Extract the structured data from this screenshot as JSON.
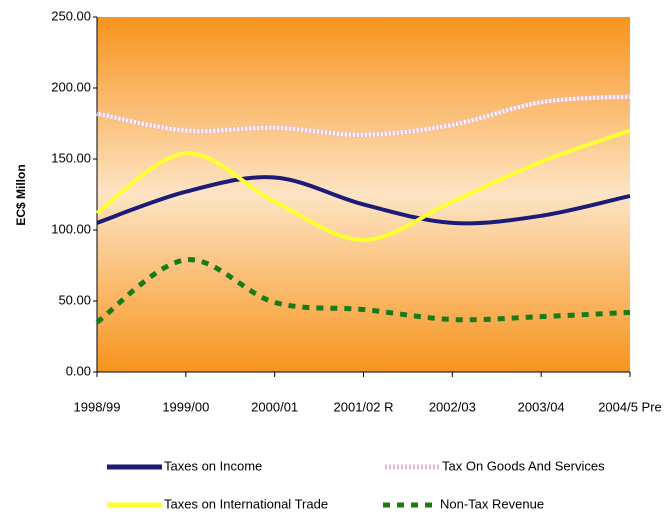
{
  "chart_data": {
    "type": "line",
    "y_label": "EC$ Millon",
    "categories": [
      "1998/99",
      "1999/00",
      "2000/01",
      "2001/02 R",
      "2002/03",
      "2003/04",
      "2004/5 Pre"
    ],
    "series": [
      {
        "name": "Taxes on Income",
        "color": "#1c1c78",
        "dash": "solid",
        "values": [
          105,
          127,
          137,
          118,
          105,
          110,
          124
        ]
      },
      {
        "name": "Tax On Goods And Services",
        "color": "#f2b6c0",
        "dash": "dotted",
        "values": [
          182,
          170,
          172,
          167,
          174,
          190,
          194
        ]
      },
      {
        "name": "Taxes on International Trade",
        "color": "#ffff33",
        "dash": "solid",
        "values": [
          112,
          154,
          120,
          93,
          120,
          148,
          170
        ]
      },
      {
        "name": "Non-Tax Revenue",
        "color": "#1a7a1a",
        "dash": "dashed",
        "values": [
          35,
          79,
          49,
          44,
          37,
          39,
          42
        ]
      }
    ],
    "ylim": [
      0,
      250
    ],
    "yticks": [
      {
        "value": 0,
        "label": "0.00"
      },
      {
        "value": 50,
        "label": "50.00"
      },
      {
        "value": 100,
        "label": "100.00"
      },
      {
        "value": 150,
        "label": "150.00"
      },
      {
        "value": 200,
        "label": "200.00"
      },
      {
        "value": 250,
        "label": "250.00"
      }
    ],
    "smooth": true
  }
}
